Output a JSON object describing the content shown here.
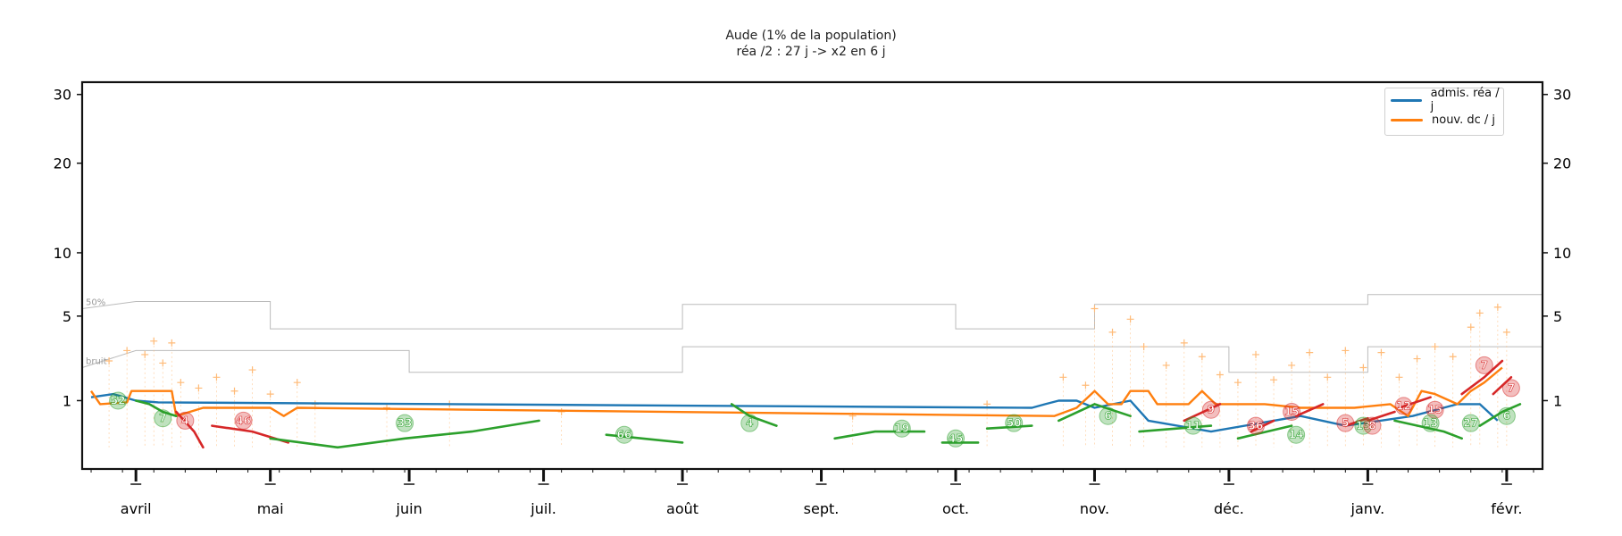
{
  "chart_data": {
    "type": "line",
    "title": "Aude (1% de la population)",
    "subtitle": "réa /2 : 27 j -> x2 en 6 j",
    "y_scale": "sqrt",
    "ylim": [
      0,
      32
    ],
    "y_ticks": [
      1,
      5,
      10,
      20,
      30
    ],
    "x_ticks": [
      "avril",
      "mai",
      "juin",
      "juil.",
      "août",
      "sept.",
      "oct.",
      "nov.",
      "déc.",
      "janv.",
      "févr."
    ],
    "x_tick_days": [
      0,
      30,
      61,
      91,
      122,
      153,
      183,
      214,
      244,
      275,
      306
    ],
    "xlim_days": [
      -12,
      314
    ],
    "legend_position": "top-right",
    "legend": [
      "admis. réa / j",
      "nouv. dc / j"
    ],
    "colors": {
      "rea": "#1f77b4",
      "dc": "#ff7f0e",
      "decreasing": "#2ca02c",
      "increasing": "#d62728",
      "raw_points": "#ffbb78",
      "reference": "#bbbbbb"
    },
    "series": [
      {
        "name": "admis. réa / j",
        "points": [
          [
            -10,
            1.1
          ],
          [
            -5,
            1.2
          ],
          [
            0,
            1.0
          ],
          [
            5,
            0.95
          ],
          [
            200,
            0.8
          ],
          [
            203,
            0.9
          ],
          [
            206,
            1.0
          ],
          [
            210,
            1.0
          ],
          [
            214,
            0.8
          ],
          [
            222,
            1.0
          ],
          [
            226,
            0.5
          ],
          [
            240,
            0.3
          ],
          [
            260,
            0.6
          ],
          [
            270,
            0.4
          ],
          [
            285,
            0.6
          ],
          [
            295,
            0.9
          ],
          [
            300,
            0.9
          ],
          [
            304,
            0.5
          ]
        ]
      },
      {
        "name": "nouv. dc / j",
        "points": [
          [
            -10,
            1.3
          ],
          [
            -8,
            0.9
          ],
          [
            -2,
            0.95
          ],
          [
            -1,
            1.3
          ],
          [
            0,
            1.3
          ],
          [
            8,
            1.3
          ],
          [
            9,
            0.6
          ],
          [
            15,
            0.8
          ],
          [
            25,
            0.8
          ],
          [
            30,
            0.8
          ],
          [
            33,
            0.6
          ],
          [
            36,
            0.8
          ],
          [
            205,
            0.6
          ],
          [
            210,
            0.8
          ],
          [
            214,
            1.3
          ],
          [
            217,
            0.9
          ],
          [
            220,
            0.9
          ],
          [
            222,
            1.3
          ],
          [
            226,
            1.3
          ],
          [
            228,
            0.9
          ],
          [
            235,
            0.9
          ],
          [
            238,
            1.3
          ],
          [
            241,
            0.9
          ],
          [
            248,
            0.9
          ],
          [
            252,
            0.9
          ],
          [
            260,
            0.8
          ],
          [
            272,
            0.8
          ],
          [
            280,
            0.9
          ],
          [
            284,
            0.6
          ],
          [
            287,
            1.3
          ],
          [
            290,
            1.2
          ],
          [
            295,
            0.9
          ],
          [
            298,
            1.3
          ],
          [
            301,
            1.6
          ],
          [
            305,
            2.2
          ]
        ]
      }
    ],
    "reference_lines": [
      {
        "name": "50%",
        "steps": [
          [
            -12,
            5.5
          ],
          [
            0,
            6.0
          ],
          [
            30,
            6.0
          ],
          [
            30,
            4.2
          ],
          [
            122,
            4.2
          ],
          [
            122,
            5.8
          ],
          [
            183,
            5.8
          ],
          [
            183,
            4.2
          ],
          [
            214,
            4.2
          ],
          [
            214,
            5.8
          ],
          [
            275,
            5.8
          ],
          [
            275,
            6.5
          ],
          [
            314,
            6.5
          ]
        ]
      },
      {
        "name": "bruit",
        "steps": [
          [
            -12,
            2.2
          ],
          [
            0,
            3.0
          ],
          [
            61,
            3.0
          ],
          [
            61,
            2.0
          ],
          [
            122,
            2.0
          ],
          [
            122,
            3.2
          ],
          [
            244,
            3.2
          ],
          [
            244,
            2.0
          ],
          [
            275,
            2.0
          ],
          [
            275,
            3.2
          ],
          [
            314,
            3.2
          ]
        ]
      }
    ],
    "trend_segments": [
      {
        "kind": "decreasing",
        "points": [
          [
            0,
            1.0
          ],
          [
            3,
            0.9
          ],
          [
            6,
            0.7
          ],
          [
            9,
            0.6
          ]
        ]
      },
      {
        "kind": "increasing",
        "points": [
          [
            9,
            0.7
          ],
          [
            13,
            0.3
          ],
          [
            15,
            0.1
          ]
        ]
      },
      {
        "kind": "increasing",
        "points": [
          [
            17,
            0.4
          ],
          [
            26,
            0.3
          ],
          [
            34,
            0.15
          ]
        ]
      },
      {
        "kind": "decreasing",
        "points": [
          [
            30,
            0.2
          ],
          [
            45,
            0.1
          ],
          [
            60,
            0.2
          ],
          [
            75,
            0.3
          ],
          [
            90,
            0.5
          ]
        ]
      },
      {
        "kind": "decreasing",
        "points": [
          [
            105,
            0.25
          ],
          [
            122,
            0.15
          ]
        ]
      },
      {
        "kind": "decreasing",
        "points": [
          [
            133,
            0.9
          ],
          [
            137,
            0.6
          ],
          [
            143,
            0.4
          ]
        ]
      },
      {
        "kind": "decreasing",
        "points": [
          [
            156,
            0.2
          ],
          [
            165,
            0.3
          ],
          [
            176,
            0.3
          ]
        ]
      },
      {
        "kind": "decreasing",
        "points": [
          [
            180,
            0.15
          ],
          [
            188,
            0.15
          ]
        ]
      },
      {
        "kind": "decreasing",
        "points": [
          [
            190,
            0.35
          ],
          [
            200,
            0.4
          ]
        ]
      },
      {
        "kind": "decreasing",
        "points": [
          [
            206,
            0.5
          ],
          [
            214,
            0.9
          ],
          [
            222,
            0.6
          ]
        ]
      },
      {
        "kind": "decreasing",
        "points": [
          [
            224,
            0.3
          ],
          [
            240,
            0.4
          ]
        ]
      },
      {
        "kind": "increasing",
        "points": [
          [
            234,
            0.5
          ],
          [
            242,
            0.9
          ]
        ]
      },
      {
        "kind": "decreasing",
        "points": [
          [
            246,
            0.2
          ],
          [
            258,
            0.4
          ]
        ]
      },
      {
        "kind": "increasing",
        "points": [
          [
            249,
            0.3
          ],
          [
            254,
            0.5
          ]
        ]
      },
      {
        "kind": "increasing",
        "points": [
          [
            259,
            0.6
          ],
          [
            265,
            0.9
          ]
        ]
      },
      {
        "kind": "increasing",
        "points": [
          [
            270,
            0.4
          ],
          [
            275,
            0.55
          ]
        ]
      },
      {
        "kind": "increasing",
        "points": [
          [
            275,
            0.5
          ],
          [
            281,
            0.7
          ]
        ]
      },
      {
        "kind": "increasing",
        "points": [
          [
            282,
            0.8
          ],
          [
            289,
            1.1
          ]
        ]
      },
      {
        "kind": "decreasing",
        "points": [
          [
            281,
            0.5
          ],
          [
            292,
            0.3
          ],
          [
            296,
            0.2
          ]
        ]
      },
      {
        "kind": "increasing",
        "points": [
          [
            296,
            1.2
          ],
          [
            301,
            1.8
          ],
          [
            305,
            2.5
          ]
        ]
      },
      {
        "kind": "increasing",
        "points": [
          [
            303,
            1.2
          ],
          [
            307,
            1.8
          ]
        ]
      },
      {
        "kind": "decreasing",
        "points": [
          [
            300,
            0.4
          ],
          [
            305,
            0.7
          ],
          [
            309,
            0.9
          ]
        ]
      }
    ],
    "trend_labels": [
      {
        "x": -4,
        "y": 1.0,
        "text": "52",
        "kind": "decreasing"
      },
      {
        "x": 6,
        "y": 0.55,
        "text": "7",
        "kind": "decreasing"
      },
      {
        "x": 11,
        "y": 0.5,
        "text": "4",
        "kind": "increasing"
      },
      {
        "x": 24,
        "y": 0.5,
        "text": "46",
        "kind": "increasing"
      },
      {
        "x": 60,
        "y": 0.45,
        "text": "33",
        "kind": "decreasing"
      },
      {
        "x": 109,
        "y": 0.25,
        "text": "66",
        "kind": "decreasing"
      },
      {
        "x": 137,
        "y": 0.45,
        "text": "4",
        "kind": "decreasing"
      },
      {
        "x": 171,
        "y": 0.35,
        "text": "19",
        "kind": "decreasing"
      },
      {
        "x": 183,
        "y": 0.2,
        "text": "45",
        "kind": "decreasing"
      },
      {
        "x": 196,
        "y": 0.45,
        "text": "50",
        "kind": "decreasing"
      },
      {
        "x": 217,
        "y": 0.6,
        "text": "6",
        "kind": "decreasing"
      },
      {
        "x": 236,
        "y": 0.4,
        "text": "11",
        "kind": "decreasing"
      },
      {
        "x": 240,
        "y": 0.75,
        "text": "9",
        "kind": "increasing"
      },
      {
        "x": 250,
        "y": 0.4,
        "text": "36",
        "kind": "increasing"
      },
      {
        "x": 258,
        "y": 0.7,
        "text": "15",
        "kind": "increasing"
      },
      {
        "x": 259,
        "y": 0.25,
        "text": "14",
        "kind": "decreasing"
      },
      {
        "x": 270,
        "y": 0.45,
        "text": "5",
        "kind": "increasing"
      },
      {
        "x": 274,
        "y": 0.4,
        "text": "13",
        "kind": "decreasing"
      },
      {
        "x": 276,
        "y": 0.4,
        "text": "8",
        "kind": "increasing"
      },
      {
        "x": 283,
        "y": 0.85,
        "text": "12",
        "kind": "increasing"
      },
      {
        "x": 290,
        "y": 0.75,
        "text": "15",
        "kind": "increasing"
      },
      {
        "x": 289,
        "y": 0.45,
        "text": "13",
        "kind": "decreasing"
      },
      {
        "x": 298,
        "y": 0.45,
        "text": "27",
        "kind": "decreasing"
      },
      {
        "x": 301,
        "y": 2.3,
        "text": "7",
        "kind": "increasing"
      },
      {
        "x": 307,
        "y": 1.4,
        "text": "7",
        "kind": "increasing"
      },
      {
        "x": 306,
        "y": 0.6,
        "text": "6",
        "kind": "decreasing"
      }
    ],
    "raw_points": [
      [
        -6,
        2.5
      ],
      [
        -2,
        3.0
      ],
      [
        2,
        2.8
      ],
      [
        4,
        3.5
      ],
      [
        6,
        2.4
      ],
      [
        8,
        3.4
      ],
      [
        10,
        1.6
      ],
      [
        14,
        1.4
      ],
      [
        18,
        1.8
      ],
      [
        22,
        1.3
      ],
      [
        26,
        2.1
      ],
      [
        30,
        1.2
      ],
      [
        36,
        1.6
      ],
      [
        40,
        0.9
      ],
      [
        56,
        0.8
      ],
      [
        70,
        0.9
      ],
      [
        95,
        0.7
      ],
      [
        160,
        0.6
      ],
      [
        190,
        0.9
      ],
      [
        207,
        1.8
      ],
      [
        212,
        1.5
      ],
      [
        214,
        5.5
      ],
      [
        218,
        4.0
      ],
      [
        222,
        4.8
      ],
      [
        225,
        3.2
      ],
      [
        230,
        2.3
      ],
      [
        234,
        3.4
      ],
      [
        238,
        2.7
      ],
      [
        242,
        1.9
      ],
      [
        246,
        1.6
      ],
      [
        250,
        2.8
      ],
      [
        254,
        1.7
      ],
      [
        258,
        2.3
      ],
      [
        262,
        2.9
      ],
      [
        266,
        1.8
      ],
      [
        270,
        3.0
      ],
      [
        274,
        2.2
      ],
      [
        278,
        2.9
      ],
      [
        282,
        1.8
      ],
      [
        286,
        2.6
      ],
      [
        290,
        3.2
      ],
      [
        294,
        2.7
      ],
      [
        298,
        4.3
      ],
      [
        300,
        5.2
      ],
      [
        304,
        5.6
      ],
      [
        306,
        4.0
      ]
    ]
  }
}
